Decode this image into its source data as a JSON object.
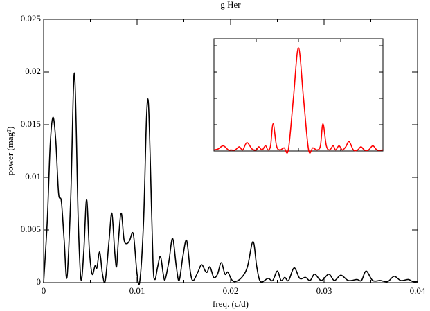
{
  "chart_data": [
    {
      "type": "line",
      "title": "g Her",
      "x_label": "freq. (c/d)",
      "y_label": "power (mag²)",
      "xlim": [
        0,
        0.04
      ],
      "ylim": [
        0,
        0.025
      ],
      "xticks": [
        0,
        0.01,
        0.02,
        0.03,
        0.04
      ],
      "xminorticks": [
        0.005,
        0.015,
        0.025,
        0.035
      ],
      "yticks": [
        0,
        0.005,
        0.01,
        0.015,
        0.02,
        0.025
      ],
      "x": [
        0,
        0.0004,
        0.0007,
        0.001,
        0.0013,
        0.0016,
        0.0019,
        0.0022,
        0.0025,
        0.0029,
        0.0033,
        0.0037,
        0.004,
        0.0043,
        0.0046,
        0.0049,
        0.0052,
        0.0055,
        0.0057,
        0.006,
        0.0063,
        0.0066,
        0.007,
        0.0073,
        0.0076,
        0.0078,
        0.008,
        0.0083,
        0.0086,
        0.0089,
        0.0092,
        0.0096,
        0.01,
        0.0103,
        0.0107,
        0.011,
        0.0112,
        0.0114,
        0.0117,
        0.0119,
        0.0122,
        0.0125,
        0.0128,
        0.013,
        0.0134,
        0.0138,
        0.0142,
        0.0145,
        0.0149,
        0.0153,
        0.0157,
        0.016,
        0.0165,
        0.0169,
        0.0173,
        0.0175,
        0.0178,
        0.0182,
        0.0186,
        0.019,
        0.0194,
        0.0197,
        0.0201,
        0.0205,
        0.0212,
        0.0218,
        0.0224,
        0.0228,
        0.0232,
        0.024,
        0.0245,
        0.025,
        0.0254,
        0.0258,
        0.0262,
        0.0268,
        0.0274,
        0.028,
        0.0285,
        0.029,
        0.0297,
        0.0305,
        0.0311,
        0.0318,
        0.0326,
        0.0335,
        0.034,
        0.0345,
        0.0352,
        0.036,
        0.0368,
        0.0375,
        0.0382,
        0.039,
        0.0395,
        0.04
      ],
      "series": [
        {
          "color": "#000000",
          "values": [
            0,
            0.006,
            0.013,
            0.0157,
            0.0135,
            0.0085,
            0.0077,
            0.004,
            0.0005,
            0.008,
            0.0199,
            0.006,
            0.0003,
            0.003,
            0.0079,
            0.003,
            0.0008,
            0.0016,
            0.0014,
            0.0029,
            0.0008,
            0.0002,
            0.004,
            0.0066,
            0.003,
            0.0015,
            0.004,
            0.0066,
            0.0041,
            0.0037,
            0.004,
            0.0046,
            0.0008,
            0.0002,
            0.006,
            0.0155,
            0.0172,
            0.012,
            0.002,
            0.0003,
            0.0015,
            0.0025,
            0.0008,
            0.0003,
            0.002,
            0.0042,
            0.0015,
            0.0002,
            0.0025,
            0.004,
            0.001,
            0.0002,
            0.001,
            0.0017,
            0.0011,
            0.001,
            0.0015,
            0.0005,
            0.0008,
            0.0019,
            0.0008,
            0.001,
            0.0003,
            0.0001,
            0.0005,
            0.0015,
            0.0039,
            0.0015,
            0.0001,
            0.0004,
            0.0002,
            0.0011,
            0.0002,
            0.0005,
            0.0002,
            0.0014,
            0.0004,
            0.0005,
            0.0002,
            0.0008,
            0.0002,
            0.0008,
            0.0002,
            0.0007,
            0.0002,
            0.0003,
            0.0002,
            0.0011,
            0.0002,
            0.0002,
            0.0001,
            0.0006,
            0.0002,
            0.0003,
            0.0001,
            0.0001
          ]
        }
      ]
    },
    {
      "type": "line",
      "xlim": [
        -1,
        1
      ],
      "ylim": [
        0,
        1.066
      ],
      "xticks": [
        -0.5,
        0,
        0.5
      ],
      "yticks": [
        0.25,
        0.5,
        0.75,
        1
      ],
      "x": [
        -1,
        -0.95,
        -0.89,
        -0.83,
        -0.8,
        -0.75,
        -0.7,
        -0.66,
        -0.61,
        -0.55,
        -0.5,
        -0.47,
        -0.43,
        -0.39,
        -0.36,
        -0.33,
        -0.3,
        -0.26,
        -0.22,
        -0.17,
        -0.12,
        -0.06,
        0,
        0.06,
        0.12,
        0.17,
        0.22,
        0.26,
        0.29,
        0.33,
        0.37,
        0.41,
        0.44,
        0.48,
        0.52,
        0.56,
        0.6,
        0.65,
        0.7,
        0.74,
        0.78,
        0.83,
        0.88,
        0.93,
        1
      ],
      "series": [
        {
          "color": "#ff0000",
          "values": [
            0.01,
            0.02,
            0.05,
            0.01,
            0.01,
            0.01,
            0.04,
            0.01,
            0.08,
            0.02,
            0.01,
            0.04,
            0.01,
            0.05,
            0.01,
            0.05,
            0.26,
            0.05,
            0.01,
            0.03,
            0.01,
            0.5,
            0.98,
            0.5,
            0.01,
            0.03,
            0.01,
            0.05,
            0.26,
            0.05,
            0.01,
            0.05,
            0.01,
            0.05,
            0.01,
            0.04,
            0.09,
            0.01,
            0.01,
            0.04,
            0.01,
            0.01,
            0.05,
            0.01,
            0.01
          ]
        }
      ]
    }
  ]
}
